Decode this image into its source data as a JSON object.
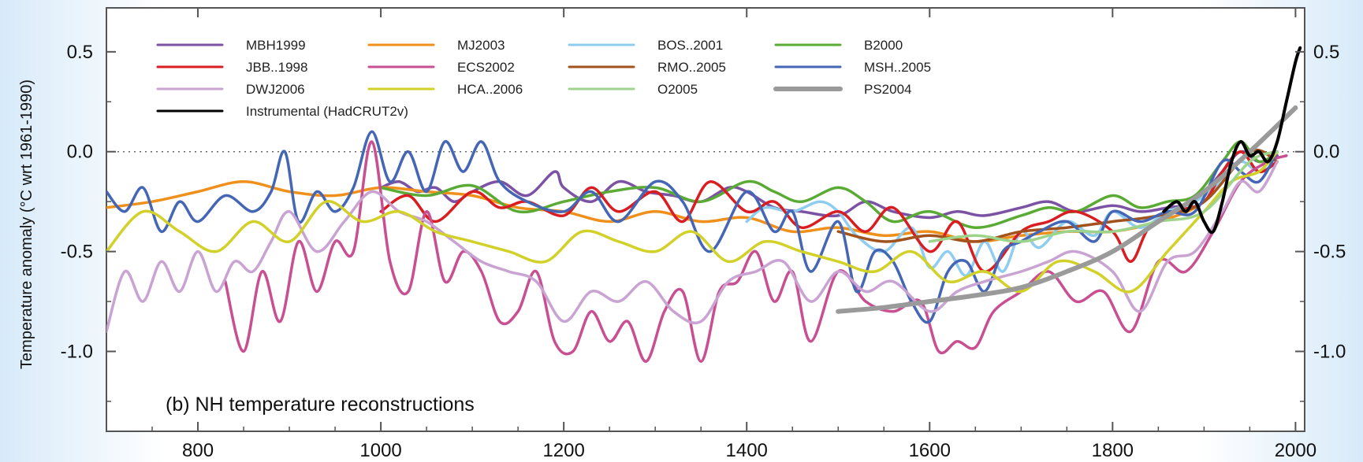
{
  "chart_data": {
    "type": "line",
    "title": "(b) NH temperature reconstructions",
    "ylabel": "Temperature anomaly (°C wrt 1961-1990)",
    "xlabel": "",
    "xlim": [
      700,
      2010
    ],
    "ylim": [
      -1.4,
      0.72
    ],
    "xticks": [
      800,
      1000,
      1200,
      1400,
      1600,
      1800,
      2000
    ],
    "yticks": [
      0.5,
      0.0,
      -0.5,
      -1.0
    ],
    "ytick_labels": [
      "0.5",
      "0.0",
      "-0.5",
      "-1.0"
    ],
    "zero_line": "dotted",
    "grid": false,
    "legend_position": "top-left",
    "series": [
      {
        "name": "MBH1999",
        "color": "#7b52a4",
        "x": [
          1000,
          1020,
          1040,
          1060,
          1080,
          1100,
          1130,
          1160,
          1190,
          1200,
          1230,
          1260,
          1290,
          1320,
          1350,
          1380,
          1400,
          1430,
          1460,
          1500,
          1530,
          1560,
          1600,
          1630,
          1660,
          1700,
          1730,
          1760,
          1800,
          1830,
          1860,
          1890,
          1920,
          1940,
          1960,
          1980
        ],
        "y": [
          -0.18,
          -0.15,
          -0.2,
          -0.18,
          -0.25,
          -0.2,
          -0.15,
          -0.22,
          -0.1,
          -0.18,
          -0.25,
          -0.15,
          -0.2,
          -0.22,
          -0.25,
          -0.18,
          -0.2,
          -0.28,
          -0.3,
          -0.32,
          -0.25,
          -0.3,
          -0.33,
          -0.3,
          -0.32,
          -0.28,
          -0.25,
          -0.3,
          -0.27,
          -0.3,
          -0.28,
          -0.25,
          -0.1,
          0.0,
          -0.05,
          -0.02
        ]
      },
      {
        "name": "MJ2003",
        "color": "#f0901c",
        "x": [
          700,
          750,
          800,
          850,
          900,
          950,
          1000,
          1050,
          1100,
          1150,
          1200,
          1250,
          1300,
          1350,
          1400,
          1450,
          1500,
          1550,
          1600,
          1650,
          1700,
          1750,
          1800,
          1850,
          1900,
          1950,
          1980
        ],
        "y": [
          -0.28,
          -0.25,
          -0.2,
          -0.15,
          -0.2,
          -0.22,
          -0.18,
          -0.2,
          -0.22,
          -0.28,
          -0.3,
          -0.35,
          -0.3,
          -0.35,
          -0.33,
          -0.4,
          -0.38,
          -0.42,
          -0.4,
          -0.45,
          -0.42,
          -0.4,
          -0.4,
          -0.35,
          -0.25,
          0.0,
          -0.05
        ]
      },
      {
        "name": "BOS..2001",
        "color": "#8fcdf0",
        "x": [
          1400,
          1420,
          1450,
          1480,
          1500,
          1520,
          1550,
          1580,
          1600,
          1620,
          1640,
          1660,
          1680,
          1700,
          1720,
          1750,
          1780,
          1800,
          1830,
          1860,
          1890,
          1920,
          1940,
          1960,
          1980
        ],
        "y": [
          -0.35,
          -0.28,
          -0.3,
          -0.25,
          -0.3,
          -0.42,
          -0.5,
          -0.38,
          -0.58,
          -0.5,
          -0.62,
          -0.45,
          -0.6,
          -0.4,
          -0.48,
          -0.35,
          -0.42,
          -0.3,
          -0.38,
          -0.3,
          -0.25,
          -0.15,
          -0.05,
          -0.1,
          -0.05
        ]
      },
      {
        "name": "B2000",
        "color": "#5aab35",
        "x": [
          1000,
          1050,
          1100,
          1150,
          1200,
          1250,
          1300,
          1350,
          1400,
          1430,
          1460,
          1500,
          1530,
          1560,
          1600,
          1650,
          1700,
          1730,
          1760,
          1800,
          1830,
          1860,
          1890,
          1920,
          1940,
          1960,
          1980
        ],
        "y": [
          -0.18,
          -0.22,
          -0.17,
          -0.3,
          -0.25,
          -0.2,
          -0.18,
          -0.25,
          -0.15,
          -0.2,
          -0.25,
          -0.18,
          -0.25,
          -0.35,
          -0.3,
          -0.38,
          -0.32,
          -0.28,
          -0.3,
          -0.22,
          -0.28,
          -0.25,
          -0.22,
          -0.05,
          0.05,
          -0.05,
          0.0
        ]
      },
      {
        "name": "JBB..1998",
        "color": "#d81e22",
        "x": [
          1000,
          1030,
          1060,
          1100,
          1130,
          1160,
          1200,
          1230,
          1260,
          1300,
          1330,
          1360,
          1400,
          1430,
          1460,
          1500,
          1530,
          1560,
          1600,
          1630,
          1660,
          1700,
          1730,
          1760,
          1800,
          1820,
          1840,
          1870,
          1900,
          1920,
          1940,
          1960,
          1980
        ],
        "y": [
          -0.3,
          -0.22,
          -0.35,
          -0.2,
          -0.28,
          -0.25,
          -0.32,
          -0.18,
          -0.3,
          -0.2,
          -0.35,
          -0.15,
          -0.3,
          -0.25,
          -0.38,
          -0.3,
          -0.4,
          -0.28,
          -0.5,
          -0.35,
          -0.6,
          -0.4,
          -0.35,
          -0.3,
          -0.4,
          -0.55,
          -0.38,
          -0.3,
          -0.25,
          -0.1,
          0.0,
          -0.1,
          -0.05
        ]
      },
      {
        "name": "ECS2002",
        "color": "#c84f92",
        "x": [
          830,
          850,
          870,
          890,
          910,
          930,
          950,
          970,
          990,
          1010,
          1030,
          1050,
          1070,
          1090,
          1110,
          1130,
          1150,
          1170,
          1190,
          1210,
          1230,
          1250,
          1270,
          1290,
          1310,
          1330,
          1350,
          1370,
          1390,
          1410,
          1430,
          1450,
          1470,
          1500,
          1530,
          1560,
          1590,
          1610,
          1630,
          1650,
          1670,
          1700,
          1730,
          1760,
          1790,
          1820,
          1850,
          1880,
          1910,
          1940,
          1970,
          1990
        ],
        "y": [
          -0.65,
          -1.0,
          -0.6,
          -0.85,
          -0.45,
          -0.7,
          -0.45,
          -0.5,
          0.05,
          -0.55,
          -0.7,
          -0.3,
          -0.65,
          -0.5,
          -0.6,
          -0.85,
          -0.8,
          -0.6,
          -0.95,
          -1.0,
          -0.8,
          -0.95,
          -0.85,
          -1.05,
          -0.8,
          -0.7,
          -1.05,
          -0.7,
          -0.65,
          -0.5,
          -0.75,
          -0.6,
          -0.95,
          -0.6,
          -0.75,
          -0.8,
          -0.75,
          -1.0,
          -0.95,
          -0.98,
          -0.8,
          -0.7,
          -0.6,
          -0.75,
          -0.7,
          -0.9,
          -0.55,
          -0.6,
          -0.4,
          -0.15,
          -0.05,
          -0.02
        ]
      },
      {
        "name": "RMO..2005",
        "color": "#a2521c",
        "x": [
          1500,
          1550,
          1600,
          1650,
          1700,
          1750,
          1800,
          1850,
          1900,
          1950,
          1980
        ],
        "y": [
          -0.4,
          -0.45,
          -0.42,
          -0.45,
          -0.4,
          -0.38,
          -0.35,
          -0.32,
          -0.25,
          0.0,
          -0.05
        ]
      },
      {
        "name": "MSH..2005",
        "color": "#4466b5",
        "x": [
          700,
          720,
          740,
          760,
          780,
          800,
          830,
          860,
          880,
          895,
          910,
          930,
          950,
          970,
          990,
          1010,
          1030,
          1050,
          1070,
          1090,
          1110,
          1130,
          1160,
          1200,
          1230,
          1260,
          1300,
          1330,
          1360,
          1400,
          1430,
          1450,
          1470,
          1500,
          1520,
          1540,
          1560,
          1580,
          1600,
          1620,
          1640,
          1660,
          1680,
          1700,
          1720,
          1750,
          1780,
          1800,
          1830,
          1860,
          1890,
          1920,
          1940,
          1960,
          1980
        ],
        "y": [
          -0.2,
          -0.3,
          -0.18,
          -0.4,
          -0.25,
          -0.35,
          -0.22,
          -0.3,
          -0.2,
          0.0,
          -0.35,
          -0.2,
          -0.3,
          -0.18,
          0.1,
          -0.15,
          0.0,
          -0.2,
          0.05,
          -0.1,
          0.05,
          -0.15,
          -0.25,
          -0.3,
          -0.2,
          -0.35,
          -0.15,
          -0.25,
          -0.5,
          -0.2,
          -0.4,
          -0.3,
          -0.6,
          -0.35,
          -0.7,
          -0.5,
          -0.55,
          -0.75,
          -0.85,
          -0.6,
          -0.55,
          -0.7,
          -0.5,
          -0.45,
          -0.4,
          -0.35,
          -0.45,
          -0.3,
          -0.35,
          -0.3,
          -0.3,
          -0.05,
          -0.1,
          -0.15,
          0.0
        ]
      },
      {
        "name": "DWJ2006",
        "color": "#c9a3d2",
        "x": [
          700,
          720,
          740,
          760,
          780,
          800,
          820,
          840,
          860,
          880,
          900,
          930,
          960,
          990,
          1020,
          1050,
          1080,
          1110,
          1140,
          1170,
          1200,
          1230,
          1260,
          1290,
          1320,
          1350,
          1380,
          1410,
          1440,
          1470,
          1500,
          1530,
          1560,
          1600,
          1630,
          1660,
          1700,
          1730,
          1760,
          1800,
          1830,
          1860,
          1890,
          1920,
          1940,
          1960,
          1980
        ],
        "y": [
          -0.9,
          -0.6,
          -0.75,
          -0.55,
          -0.7,
          -0.5,
          -0.7,
          -0.55,
          -0.6,
          -0.45,
          -0.3,
          -0.5,
          -0.35,
          -0.2,
          -0.3,
          -0.35,
          -0.45,
          -0.55,
          -0.6,
          -0.65,
          -0.85,
          -0.7,
          -0.75,
          -0.65,
          -0.8,
          -0.85,
          -0.65,
          -0.6,
          -0.55,
          -0.75,
          -0.6,
          -0.7,
          -0.65,
          -0.8,
          -0.7,
          -0.65,
          -0.6,
          -0.55,
          -0.5,
          -0.6,
          -0.8,
          -0.55,
          -0.5,
          -0.3,
          -0.15,
          -0.2,
          -0.05
        ]
      },
      {
        "name": "HCA..2006",
        "color": "#d2d12a",
        "x": [
          700,
          740,
          780,
          820,
          860,
          900,
          940,
          980,
          1020,
          1060,
          1100,
          1140,
          1180,
          1220,
          1260,
          1300,
          1340,
          1380,
          1420,
          1460,
          1500,
          1540,
          1580,
          1620,
          1660,
          1700,
          1740,
          1780,
          1820,
          1860,
          1900,
          1930,
          1960,
          1980
        ],
        "y": [
          -0.5,
          -0.3,
          -0.4,
          -0.5,
          -0.35,
          -0.45,
          -0.25,
          -0.35,
          -0.3,
          -0.4,
          -0.45,
          -0.5,
          -0.55,
          -0.4,
          -0.45,
          -0.5,
          -0.4,
          -0.55,
          -0.45,
          -0.5,
          -0.55,
          -0.6,
          -0.5,
          -0.65,
          -0.6,
          -0.7,
          -0.55,
          -0.6,
          -0.7,
          -0.5,
          -0.3,
          -0.15,
          -0.1,
          0.0
        ]
      },
      {
        "name": "O2005",
        "color": "#9ed38c",
        "x": [
          1600,
          1650,
          1700,
          1750,
          1800,
          1850,
          1900,
          1950,
          1980
        ],
        "y": [
          -0.45,
          -0.42,
          -0.45,
          -0.4,
          -0.4,
          -0.35,
          -0.3,
          -0.05,
          0.0
        ]
      },
      {
        "name": "PS2004",
        "color": "#9a9a9a",
        "x": [
          1500,
          1550,
          1600,
          1650,
          1700,
          1750,
          1800,
          1850,
          1900,
          1950,
          2000
        ],
        "y": [
          -0.8,
          -0.78,
          -0.75,
          -0.72,
          -0.68,
          -0.6,
          -0.5,
          -0.35,
          -0.2,
          0.0,
          0.22
        ]
      },
      {
        "name": "Instrumental (HadCRUT2v)",
        "color": "#000000",
        "x": [
          1856,
          1870,
          1880,
          1890,
          1900,
          1910,
          1920,
          1930,
          1940,
          1950,
          1960,
          1970,
          1980,
          1990,
          2000,
          2005
        ],
        "y": [
          -0.3,
          -0.25,
          -0.3,
          -0.25,
          -0.35,
          -0.4,
          -0.25,
          -0.05,
          0.05,
          -0.02,
          0.0,
          -0.05,
          0.05,
          0.25,
          0.45,
          0.52
        ]
      }
    ]
  }
}
